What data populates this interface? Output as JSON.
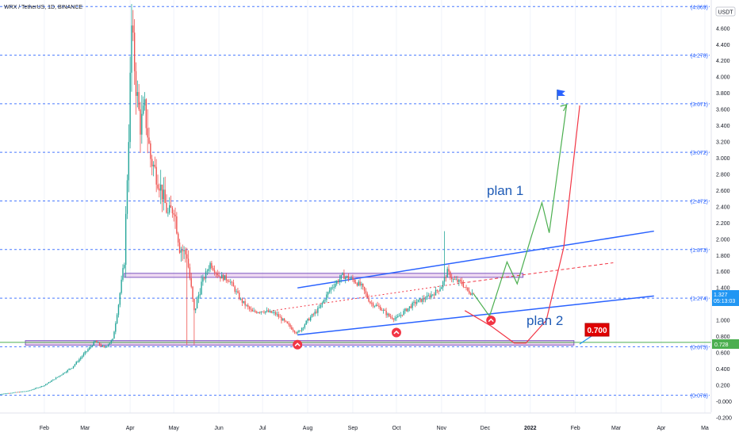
{
  "colors": {
    "up": "#26a69a",
    "down": "#ef5350",
    "fib": "#2962ff",
    "channel": "#2962ff",
    "plan1": "#4caf50",
    "plan2": "#f23645",
    "zone_fill": "rgba(206,147,216,0.45)",
    "zone_stroke": "#7e57c2",
    "support": "#4caf50",
    "label_red": "#e00000",
    "label_blue": "#2196f3",
    "label_green": "#4caf50"
  },
  "header": {
    "symbol": "WRX / TetherUS, 1D, BINANCE"
  },
  "y_axis": {
    "currency": "USDT",
    "ticks": [
      "4.600",
      "4.400",
      "4.200",
      "4.000",
      "3.800",
      "3.600",
      "3.400",
      "3.200",
      "3.000",
      "2.800",
      "2.600",
      "2.400",
      "2.200",
      "2.000",
      "1.800",
      "1.600",
      "1.400",
      "1.000",
      "0.800",
      "0.600",
      "0.400",
      "0.200",
      "-0.000",
      "-0.200"
    ],
    "current_price": "1.327",
    "countdown": "05:13:03",
    "support_price": "0.728"
  },
  "fib_levels": [
    {
      "label": "(4.869)",
      "value": 4.869
    },
    {
      "label": "(4.270)",
      "value": 4.27
    },
    {
      "label": "(3.671)",
      "value": 3.671
    },
    {
      "label": "(3.072)",
      "value": 3.072
    },
    {
      "label": "(2.472)",
      "value": 2.472
    },
    {
      "label": "(1.873)",
      "value": 1.873
    },
    {
      "label": "(1.274)",
      "value": 1.274
    },
    {
      "label": "(0.675)",
      "value": 0.675
    },
    {
      "label": "(0.076)",
      "value": 0.076
    }
  ],
  "x_axis": {
    "ticks": [
      {
        "label": "Feb",
        "day": 31,
        "bold": false
      },
      {
        "label": "Mar",
        "day": 59,
        "bold": false
      },
      {
        "label": "Apr",
        "day": 90,
        "bold": false
      },
      {
        "label": "May",
        "day": 120,
        "bold": false
      },
      {
        "label": "Jun",
        "day": 151,
        "bold": false
      },
      {
        "label": "Jul",
        "day": 181,
        "bold": false
      },
      {
        "label": "Aug",
        "day": 212,
        "bold": false
      },
      {
        "label": "Sep",
        "day": 243,
        "bold": false
      },
      {
        "label": "Oct",
        "day": 273,
        "bold": false
      },
      {
        "label": "Nov",
        "day": 304,
        "bold": false
      },
      {
        "label": "Dec",
        "day": 334,
        "bold": false
      },
      {
        "label": "2022",
        "day": 365,
        "bold": true
      },
      {
        "label": "Feb",
        "day": 396,
        "bold": false
      },
      {
        "label": "Mar",
        "day": 424,
        "bold": false
      },
      {
        "label": "Apr",
        "day": 455,
        "bold": false
      },
      {
        "label": "Ma",
        "day": 485,
        "bold": false
      }
    ]
  },
  "annotations": {
    "plan1": "plan 1",
    "plan2": "plan 2",
    "target_label": "0.700"
  },
  "chart_data": {
    "type": "candlestick",
    "title": "WRX / TetherUS, 1D, BINANCE",
    "ylim": [
      -0.2,
      4.9
    ],
    "xlim_days": [
      0,
      490
    ],
    "anchors": [
      [
        0,
        0.09
      ],
      [
        20,
        0.13
      ],
      [
        31,
        0.2
      ],
      [
        40,
        0.3
      ],
      [
        50,
        0.42
      ],
      [
        59,
        0.6
      ],
      [
        66,
        0.74
      ],
      [
        72,
        0.66
      ],
      [
        78,
        0.76
      ],
      [
        82,
        1.2
      ],
      [
        86,
        1.75
      ],
      [
        89,
        3.3
      ],
      [
        91,
        4.6
      ],
      [
        94,
        3.9
      ],
      [
        97,
        3.4
      ],
      [
        100,
        3.6
      ],
      [
        104,
        3.0
      ],
      [
        110,
        2.7
      ],
      [
        116,
        2.3
      ],
      [
        120,
        2.4
      ],
      [
        124,
        1.9
      ],
      [
        129,
        1.8
      ],
      [
        134,
        1.1
      ],
      [
        139,
        1.45
      ],
      [
        145,
        1.7
      ],
      [
        151,
        1.55
      ],
      [
        158,
        1.5
      ],
      [
        166,
        1.25
      ],
      [
        174,
        1.1
      ],
      [
        181,
        1.12
      ],
      [
        190,
        1.08
      ],
      [
        198,
        0.95
      ],
      [
        205,
        0.84
      ],
      [
        212,
        1.0
      ],
      [
        220,
        1.15
      ],
      [
        228,
        1.4
      ],
      [
        236,
        1.55
      ],
      [
        243,
        1.5
      ],
      [
        249,
        1.42
      ],
      [
        255,
        1.22
      ],
      [
        262,
        1.15
      ],
      [
        268,
        1.05
      ],
      [
        273,
        1.02
      ],
      [
        279,
        1.12
      ],
      [
        286,
        1.22
      ],
      [
        294,
        1.28
      ],
      [
        300,
        1.35
      ],
      [
        304,
        1.42
      ],
      [
        308,
        1.6
      ],
      [
        312,
        1.5
      ],
      [
        318,
        1.46
      ],
      [
        322,
        1.36
      ],
      [
        326,
        1.327
      ]
    ],
    "plan1_path": [
      [
        326,
        1.327
      ],
      [
        337,
        1.05
      ],
      [
        349,
        1.72
      ],
      [
        356,
        1.45
      ],
      [
        366,
        2.05
      ],
      [
        373,
        2.45
      ],
      [
        378,
        2.08
      ],
      [
        390,
        3.66
      ]
    ],
    "plan2_path": [
      [
        320,
        1.12
      ],
      [
        338,
        0.93
      ],
      [
        354,
        0.72
      ],
      [
        362,
        0.72
      ],
      [
        376,
        1.0
      ],
      [
        388,
        1.9
      ],
      [
        399,
        3.65
      ]
    ],
    "channel": {
      "lower": [
        [
          205,
          0.82
        ],
        [
          450,
          1.3
        ]
      ],
      "upper": [
        [
          205,
          1.4
        ],
        [
          450,
          2.1
        ]
      ],
      "mid": [
        [
          205,
          1.2
        ],
        [
          450,
          1.71
        ]
      ]
    },
    "zone_1_55": {
      "from_day": 86,
      "to_day": 360,
      "low": 1.53,
      "high": 1.58
    },
    "zone_0_70": {
      "from_day": 18,
      "to_day": 395,
      "low": 0.695,
      "high": 0.75
    },
    "support_line": 0.728
  }
}
